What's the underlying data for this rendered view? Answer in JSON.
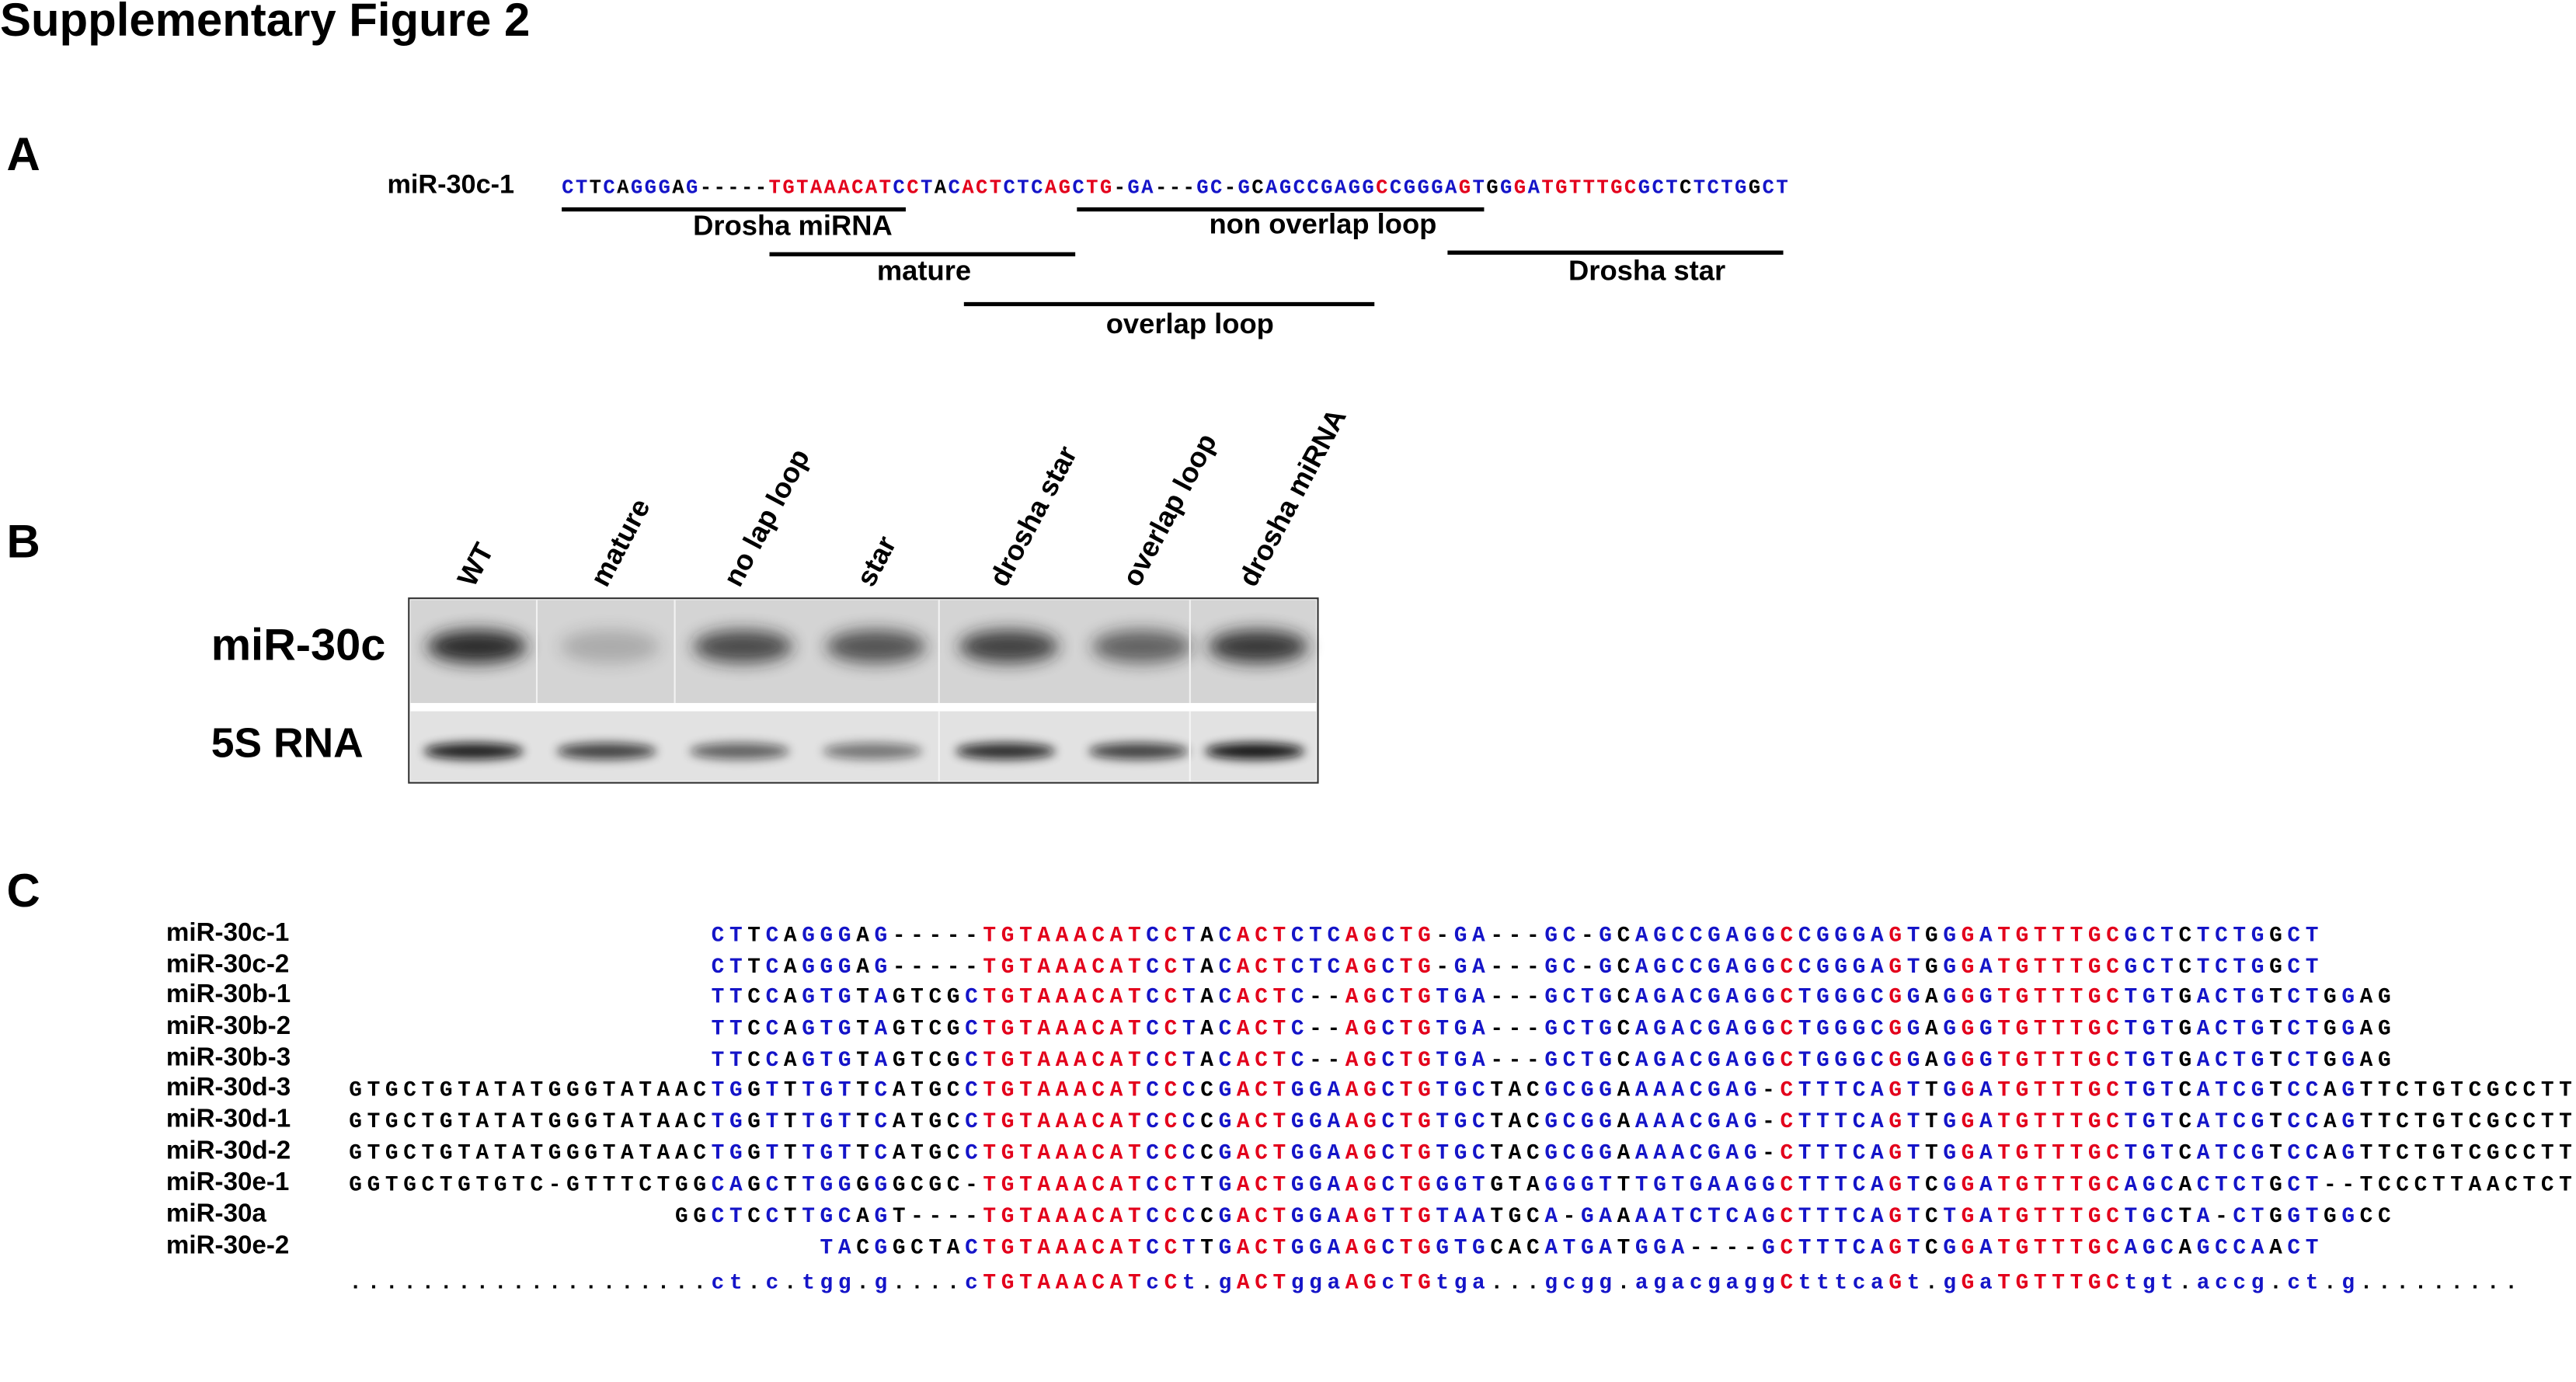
{
  "title": "Supplementary Figure 2",
  "panel_a": {
    "label": "A",
    "sequence_name": "miR-30c-1",
    "sequence": "CTTCAGGGAG-----TGTAAACATCCTACACTCTCAGCTG-GA---GC-GCAGCCGAGGCCGGGAGTGGGATGTTTGCGCTCTCTGGCT",
    "regions": [
      {
        "name": "Drosha miRNA"
      },
      {
        "name": "non overlap loop"
      },
      {
        "name": "mature"
      },
      {
        "name": "Drosha star"
      },
      {
        "name": "overlap loop"
      }
    ]
  },
  "panel_b": {
    "label": "B",
    "lanes": [
      "WT",
      "mature",
      "no lap loop",
      "star",
      "drosha star",
      "overlap loop",
      "drosha miRNA"
    ],
    "rows": [
      "miR-30c",
      "5S RNA"
    ]
  },
  "panel_c": {
    "label": "C",
    "colors": {
      "conserved": "#e3001b",
      "partial": "#1414c8",
      "other": "#000000"
    },
    "alignment": [
      {
        "name": "miR-30c-1",
        "sequence": "                    CTTCAGGGAG-----TGTAAACATCCTACACTCTCAGCTG-GA---GC-GCAGCCGAGGCCGGGAGTGGGATGTTTGCGCTCTCTGGCT"
      },
      {
        "name": "miR-30c-2",
        "sequence": "                    CTTCAGGGAG-----TGTAAACATCCTACACTCTCAGCTG-GA---GC-GCAGCCGAGGCCGGGAGTGGGATGTTTGCGCTCTCTGGCT"
      },
      {
        "name": "miR-30b-1",
        "sequence": "                    TTCCAGTGTAGTCGCTGTAAACATCCTACACTC--AGCTGTGA---GCTGCAGACGAGGCTGGGCGGAGGGTGTTTGCTGTGACTGTCTGGAG"
      },
      {
        "name": "miR-30b-2",
        "sequence": "                    TTCCAGTGTAGTCGCTGTAAACATCCTACACTC--AGCTGTGA---GCTGCAGACGAGGCTGGGCGGAGGGTGTTTGCTGTGACTGTCTGGAG"
      },
      {
        "name": "miR-30b-3",
        "sequence": "                    TTCCAGTGTAGTCGCTGTAAACATCCTACACTC--AGCTGTGA---GCTGCAGACGAGGCTGGGCGGAGGGTGTTTGCTGTGACTGTCTGGAG"
      },
      {
        "name": "miR-30d-3",
        "sequence": "GTGCTGTATATGGGTATAACTGGTTTGTTCATGCCTGTAAACATCCCCGACTGGAAGCTGTGCTACGCGGAAAACGAG-CTTTCAGTTGGATGTTTGCTGTCATCGTCCAGTTCTGTCGCCTTGTATTAC"
      },
      {
        "name": "miR-30d-1",
        "sequence": "GTGCTGTATATGGGTATAACTGGTTTGTTCATGCCTGTAAACATCCCCGACTGGAAGCTGTGCTACGCGGAAAACGAG-CTTTCAGTTGGATGTTTGCTGTCATCGTCCAGTTCTGTCGCCTTGTATTAC"
      },
      {
        "name": "miR-30d-2",
        "sequence": "GTGCTGTATATGGGTATAACTGGTTTGTTCATGCCTGTAAACATCCCCGACTGGAAGCTGTGCTACGCGGAAAACGAG-CTTTCAGTTGGATGTTTGCTGTCATCGTCCAGTTCTGTCGCCTTGTATTAC"
      },
      {
        "name": "miR-30e-1",
        "sequence": "GGTGCTGTGTC-GTTTCTGGCAGCTTGGGGGCGC-TGTAAACATCCTTGACTGGAAGCTGGGTGTAGGGTTTGTGAAGGCTTTCAGTCGGATGTTTGCAGCACTCTGCT--TCCCTTAACTCTGCACAAC"
      },
      {
        "name": "miR-30a",
        "sequence": "                  GGCTCCTTGCAGT----TGTAAACATCCCCGACTGGAAGTTGTAATGCA-GAAAATCTCAGCTTTCAGTCTGATGTTTGCTGCTA-CTGGTGGCC"
      },
      {
        "name": "miR-30e-2",
        "sequence": "                          TACGGCTACTGTAAACATCCTTGACTGGAAGCTGGTGCACATGATGGA----GCTTTCAGTCGGATGTTTGCAGCAGCCAACT"
      }
    ],
    "consensus": "....................ct.c.tgg.g....cTGTAAACATcCt.gACTggaAGcTGtga...gcgg.agacgaggCtttcaGt.gGaTGTTTGCtgt.accg.ct.g........."
  }
}
